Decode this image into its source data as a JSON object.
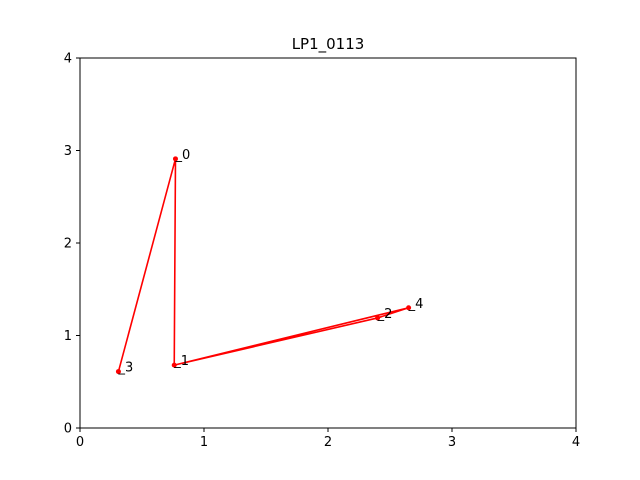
{
  "chart_data": {
    "type": "line",
    "title": "LP1_0113",
    "xlabel": "",
    "ylabel": "",
    "xlim": [
      0,
      4
    ],
    "ylim": [
      0,
      4
    ],
    "xticks": [
      "0",
      "1",
      "2",
      "3",
      "4"
    ],
    "yticks": [
      "0",
      "1",
      "2",
      "3",
      "4"
    ],
    "grid": false,
    "series": [
      {
        "color": "#ff0000",
        "points": [
          {
            "label": "0",
            "x": 0.77,
            "y": 2.91
          },
          {
            "label": "1",
            "x": 0.76,
            "y": 0.68
          },
          {
            "label": "2",
            "x": 2.4,
            "y": 1.19
          },
          {
            "label": "3",
            "x": 0.31,
            "y": 0.61
          },
          {
            "label": "4",
            "x": 2.65,
            "y": 1.3
          }
        ],
        "path_order": [
          3,
          0,
          1,
          4,
          2,
          1
        ]
      }
    ]
  }
}
